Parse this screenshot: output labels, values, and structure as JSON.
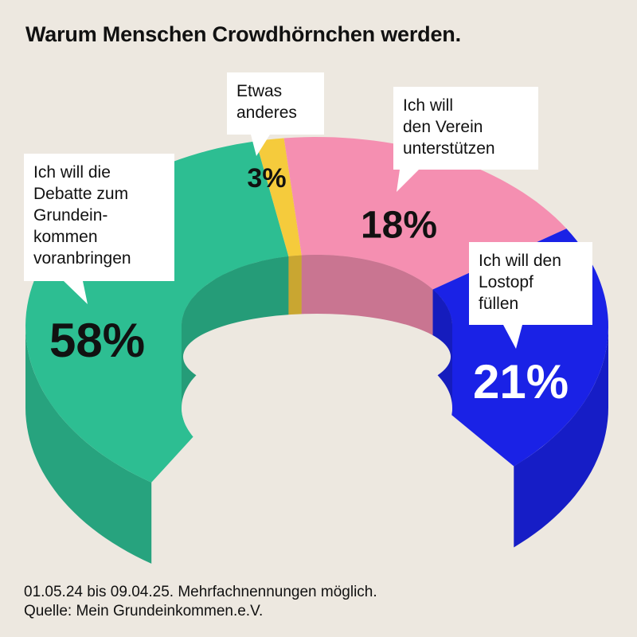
{
  "title": "Warum Menschen Crowdhörnchen werden.",
  "footer": {
    "line1": "01.05.24 bis 09.04.25. Mehrfachnennungen möglich.",
    "line2": "Quelle: Mein Grundeinkommen.e.V."
  },
  "colors": {
    "background": "#ede8e0",
    "green": "#2dbe92",
    "yellow": "#f5cb3c",
    "pink": "#f58fb1",
    "blue": "#1a22e6"
  },
  "chart_data": {
    "type": "pie",
    "style": "3d-donut",
    "title": "Warum Menschen Crowdhörnchen werden.",
    "slices": [
      {
        "label_lines": [
          "Ich will die",
          "Debatte zum",
          "Grundein-",
          "kommen",
          "voranbringen"
        ],
        "value": 58,
        "value_label": "58%",
        "color": "#2dbe92",
        "value_color": "#111111"
      },
      {
        "label_lines": [
          "Etwas",
          "anderes"
        ],
        "value": 3,
        "value_label": "3%",
        "color": "#f5cb3c",
        "value_color": "#111111"
      },
      {
        "label_lines": [
          "Ich will",
          "den Verein",
          "unterstützen"
        ],
        "value": 18,
        "value_label": "18%",
        "color": "#f58fb1",
        "value_color": "#111111"
      },
      {
        "label_lines": [
          "Ich will den",
          "Lostopf",
          "füllen"
        ],
        "value": 21,
        "value_label": "21%",
        "color": "#1a22e6",
        "value_color": "#ffffff"
      }
    ]
  }
}
